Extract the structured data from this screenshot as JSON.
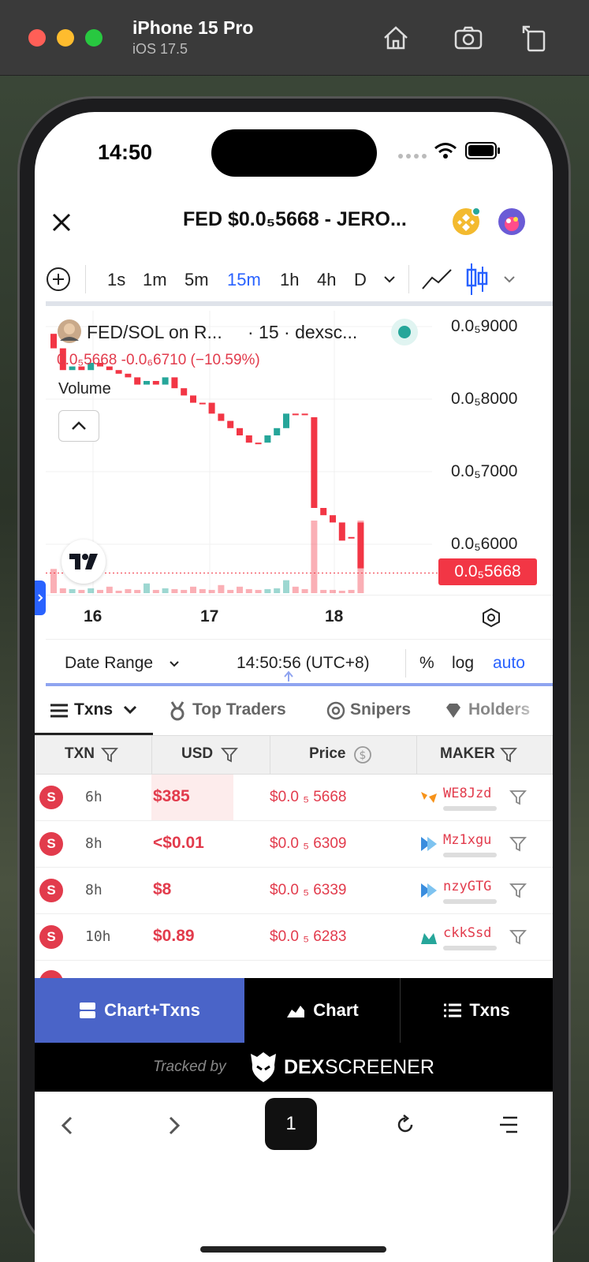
{
  "simulator": {
    "device": "iPhone 15 Pro",
    "os": "iOS 17.5"
  },
  "status": {
    "time": "14:50"
  },
  "header": {
    "title": "FED $0.0₅5668 - JERO..."
  },
  "timeframes": [
    "1s",
    "1m",
    "5m",
    "15m",
    "1h",
    "4h",
    "D"
  ],
  "active_timeframe": "15m",
  "chart": {
    "legend_title": "FED/SOL on R...",
    "legend_meta": "· 15 · dexsc...",
    "legend_values": "0.0₅5668 -0.0₆6710 (−10.59%)",
    "volume_label": "Volume",
    "price_labels": [
      "0.0₅9000",
      "0.0₅8000",
      "0.0₅7000",
      "0.0₅6000"
    ],
    "current_price": "0.0₅5668",
    "date_labels": [
      "16",
      "17",
      "18"
    ]
  },
  "chart_data": {
    "type": "candlestick",
    "price_unit": "0.0₅ (×1e-6)",
    "y_ticks": [
      9000,
      8000,
      7000,
      6000
    ],
    "current": 5668,
    "candles": [
      {
        "o": 8900,
        "c": 8700
      },
      {
        "o": 8700,
        "c": 8400
      },
      {
        "o": 8400,
        "c": 8450
      },
      {
        "o": 8450,
        "c": 8400
      },
      {
        "o": 8400,
        "c": 8500
      },
      {
        "o": 8500,
        "c": 8450
      },
      {
        "o": 8450,
        "c": 8400
      },
      {
        "o": 8400,
        "c": 8350
      },
      {
        "o": 8350,
        "c": 8300
      },
      {
        "o": 8300,
        "c": 8200
      },
      {
        "o": 8200,
        "c": 8250
      },
      {
        "o": 8250,
        "c": 8200
      },
      {
        "o": 8200,
        "c": 8300
      },
      {
        "o": 8300,
        "c": 8150
      },
      {
        "o": 8150,
        "c": 8050
      },
      {
        "o": 8050,
        "c": 7950
      },
      {
        "o": 7950,
        "c": 7950
      },
      {
        "o": 7950,
        "c": 7800
      },
      {
        "o": 7800,
        "c": 7700
      },
      {
        "o": 7700,
        "c": 7600
      },
      {
        "o": 7600,
        "c": 7500
      },
      {
        "o": 7500,
        "c": 7400
      },
      {
        "o": 7400,
        "c": 7400
      },
      {
        "o": 7400,
        "c": 7500
      },
      {
        "o": 7500,
        "c": 7600
      },
      {
        "o": 7600,
        "c": 7800
      },
      {
        "o": 7800,
        "c": 7800
      },
      {
        "o": 7800,
        "c": 7800
      },
      {
        "o": 7750,
        "c": 6500
      },
      {
        "o": 6500,
        "c": 6400
      },
      {
        "o": 6400,
        "c": 6300
      },
      {
        "o": 6300,
        "c": 6050
      },
      {
        "o": 6100,
        "c": 6100
      },
      {
        "o": 6300,
        "c": 5668
      }
    ],
    "volumes": [
      30,
      6,
      5,
      4,
      6,
      4,
      8,
      3,
      5,
      4,
      12,
      4,
      6,
      5,
      4,
      8,
      5,
      4,
      10,
      4,
      8,
      5,
      4,
      5,
      6,
      16,
      8,
      5,
      90,
      4,
      4,
      3,
      4,
      90
    ]
  },
  "range_bar": {
    "date_range": "Date Range",
    "time": "14:50:56 (UTC+8)",
    "pct": "%",
    "log": "log",
    "auto": "auto"
  },
  "tabs": {
    "txns": "Txns",
    "top_traders": "Top Traders",
    "snipers": "Snipers",
    "holders": "Holders"
  },
  "table": {
    "headers": {
      "txn": "TXN",
      "usd": "USD",
      "price": "Price",
      "maker": "MAKER"
    },
    "rows": [
      {
        "type": "S",
        "age": "6h",
        "usd": "$385",
        "price": "$0.0 ₅ 5668",
        "maker": "WE8Jzd"
      },
      {
        "type": "S",
        "age": "8h",
        "usd": "<$0.01",
        "price": "$0.0 ₅ 6309",
        "maker": "Mz1xgu"
      },
      {
        "type": "S",
        "age": "8h",
        "usd": "$8",
        "price": "$0.0 ₅ 6339",
        "maker": "nzyGTG"
      },
      {
        "type": "S",
        "age": "10h",
        "usd": "$0.89",
        "price": "$0.0 ₅ 6283",
        "maker": "ckkSsd"
      }
    ]
  },
  "bottom_tabs": {
    "chart_txns": "Chart+Txns",
    "chart": "Chart",
    "txns": "Txns"
  },
  "tracked": {
    "by": "Tracked by",
    "dex": "DEX",
    "screener": "SCREENER"
  },
  "browser_nav": {
    "tab_count": "1"
  },
  "colors": {
    "red": "#e23b4c",
    "green": "#26a69a",
    "active_blue": "#2962ff",
    "tab_blue": "#4a64c8"
  }
}
